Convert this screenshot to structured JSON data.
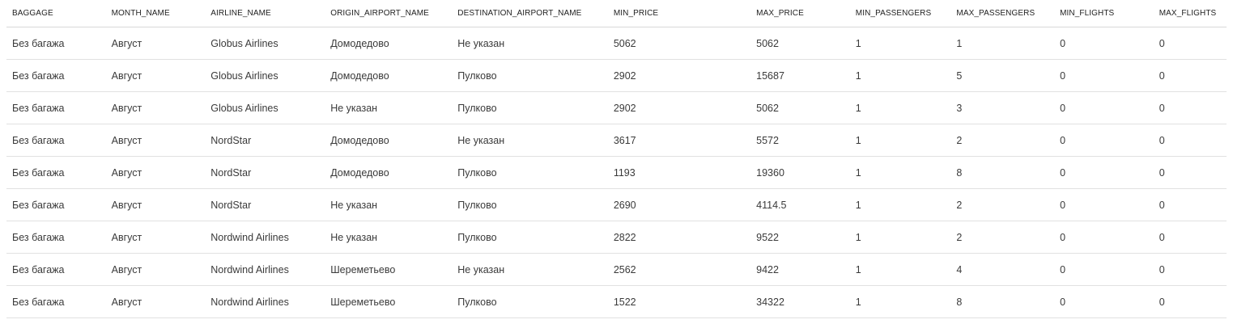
{
  "table": {
    "columns": [
      "BAGGAGE",
      "MONTH_NAME",
      "AIRLINE_NAME",
      "ORIGIN_AIRPORT_NAME",
      "DESTINATION_AIRPORT_NAME",
      "MIN_PRICE",
      "MAX_PRICE",
      "MIN_PASSENGERS",
      "MAX_PASSENGERS",
      "MIN_FLIGHTS",
      "MAX_FLIGHTS"
    ],
    "rows": [
      [
        "Без багажа",
        "Август",
        "Globus Airlines",
        "Домодедово",
        "Не указан",
        "5062",
        "5062",
        "1",
        "1",
        "0",
        "0"
      ],
      [
        "Без багажа",
        "Август",
        "Globus Airlines",
        "Домодедово",
        "Пулково",
        "2902",
        "15687",
        "1",
        "5",
        "0",
        "0"
      ],
      [
        "Без багажа",
        "Август",
        "Globus Airlines",
        "Не указан",
        "Пулково",
        "2902",
        "5062",
        "1",
        "3",
        "0",
        "0"
      ],
      [
        "Без багажа",
        "Август",
        "NordStar",
        "Домодедово",
        "Не указан",
        "3617",
        "5572",
        "1",
        "2",
        "0",
        "0"
      ],
      [
        "Без багажа",
        "Август",
        "NordStar",
        "Домодедово",
        "Пулково",
        "1193",
        "19360",
        "1",
        "8",
        "0",
        "0"
      ],
      [
        "Без багажа",
        "Август",
        "NordStar",
        "Не указан",
        "Пулково",
        "2690",
        "4114.5",
        "1",
        "2",
        "0",
        "0"
      ],
      [
        "Без багажа",
        "Август",
        "Nordwind Airlines",
        "Не указан",
        "Пулково",
        "2822",
        "9522",
        "1",
        "2",
        "0",
        "0"
      ],
      [
        "Без багажа",
        "Август",
        "Nordwind Airlines",
        "Шереметьево",
        "Не указан",
        "2562",
        "9422",
        "1",
        "4",
        "0",
        "0"
      ],
      [
        "Без багажа",
        "Август",
        "Nordwind Airlines",
        "Шереметьево",
        "Пулково",
        "1522",
        "34322",
        "1",
        "8",
        "0",
        "0"
      ]
    ]
  }
}
